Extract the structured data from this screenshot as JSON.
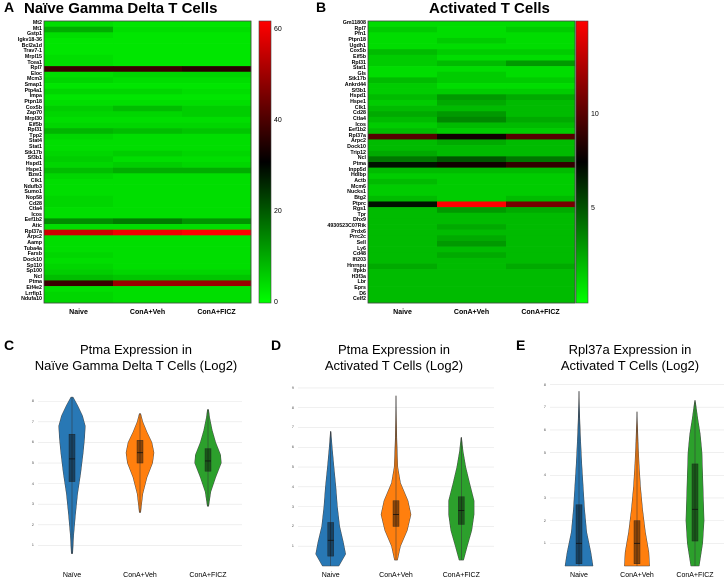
{
  "panels": {
    "A": "A",
    "B": "B",
    "C": "C",
    "D": "D",
    "E": "E"
  },
  "chart_data": [
    {
      "id": "A",
      "type": "heatmap",
      "title": "Naïve Gamma Delta T Cells",
      "columns": [
        "Naive",
        "ConA+Veh",
        "ConA+FICZ"
      ],
      "colorbar": {
        "min": 0,
        "max": 62,
        "ticks": [
          0,
          20,
          40,
          60
        ],
        "low_color": "#00ff00",
        "mid_color": "#000000",
        "high_color": "#ff0000"
      },
      "genes": [
        "Mt2",
        "Mt1",
        "Gstp1",
        "Igkv18-36",
        "Bcl2a1d",
        "Trav7-1",
        "Mrpl15",
        "Tcea1",
        "Rpl7",
        "Eloc",
        "Mcm3",
        "Smap1",
        "Ptp4a1",
        "Impa",
        "Ptpn18",
        "Cox5b",
        "Zap70",
        "Mrpl30",
        "Eif5b",
        "Rpl31",
        "Tpp2",
        "Stat4",
        "Stat1",
        "Stk17b",
        "Sf3b1",
        "Hspd1",
        "Hspe1",
        "Bzw1",
        "Clk1",
        "Ndufb3",
        "Sumo1",
        "Nop58",
        "Cd28",
        "Ctla4",
        "Icos",
        "Eef1b2",
        "Atic",
        "Rpl37a",
        "Arpc2",
        "Aamp",
        "Tuba4a",
        "Farsb",
        "Dock10",
        "Sp110",
        "Sp100",
        "Ncl",
        "Ptma",
        "Eif4e2",
        "Lrrfip1",
        "Ndufa10"
      ],
      "values": [
        [
          4,
          3,
          3
        ],
        [
          10,
          4,
          4
        ],
        [
          4,
          3,
          3
        ],
        [
          3,
          3,
          3
        ],
        [
          3,
          3,
          3
        ],
        [
          3,
          3,
          3
        ],
        [
          4,
          3,
          3
        ],
        [
          4,
          3,
          3
        ],
        [
          38,
          38,
          36
        ],
        [
          4,
          5,
          5
        ],
        [
          5,
          4,
          4
        ],
        [
          3,
          3,
          3
        ],
        [
          5,
          5,
          4
        ],
        [
          3,
          3,
          3
        ],
        [
          4,
          4,
          4
        ],
        [
          6,
          8,
          6
        ],
        [
          5,
          5,
          6
        ],
        [
          4,
          4,
          4
        ],
        [
          5,
          5,
          5
        ],
        [
          9,
          8,
          7
        ],
        [
          5,
          4,
          4
        ],
        [
          4,
          4,
          4
        ],
        [
          4,
          4,
          4
        ],
        [
          5,
          6,
          5
        ],
        [
          6,
          4,
          4
        ],
        [
          5,
          6,
          5
        ],
        [
          8,
          10,
          10
        ],
        [
          5,
          4,
          4
        ],
        [
          4,
          4,
          4
        ],
        [
          4,
          4,
          4
        ],
        [
          4,
          4,
          4
        ],
        [
          5,
          4,
          4
        ],
        [
          5,
          4,
          4
        ],
        [
          4,
          4,
          4
        ],
        [
          4,
          4,
          4
        ],
        [
          14,
          16,
          13
        ],
        [
          4,
          4,
          4
        ],
        [
          56,
          60,
          62
        ],
        [
          4,
          4,
          4
        ],
        [
          4,
          4,
          4
        ],
        [
          4,
          4,
          4
        ],
        [
          5,
          4,
          4
        ],
        [
          4,
          4,
          4
        ],
        [
          5,
          4,
          4
        ],
        [
          6,
          5,
          5
        ],
        [
          8,
          7,
          7
        ],
        [
          38,
          50,
          50
        ],
        [
          4,
          4,
          4
        ],
        [
          5,
          4,
          4
        ],
        [
          5,
          4,
          4
        ]
      ]
    },
    {
      "id": "B",
      "type": "heatmap",
      "title": "Activated T Cells",
      "columns": [
        "Naive",
        "ConA+Veh",
        "ConA+FICZ"
      ],
      "colorbar": {
        "min": 0,
        "max": 15,
        "ticks": [
          5,
          10
        ],
        "low_color": "#00ff00",
        "mid_color": "#000000",
        "high_color": "#ff0000"
      },
      "genes": [
        "Gm11808",
        "Rpl7",
        "Pfn1",
        "Ptpn18",
        "Ugdh1",
        "Cox5b",
        "Eif5b",
        "Rpl31",
        "Stat1",
        "Gls",
        "Stk17b",
        "Ankrd44",
        "Sf3b1",
        "Hspd1",
        "Hspe1",
        "Clk1",
        "Cd28",
        "Ctla4",
        "Icos",
        "Eef1b2",
        "Rpl37a",
        "Arpc2",
        "Dock10",
        "Trip12",
        "Ncl",
        "Ptma",
        "Inpp5d",
        "Hdlbp",
        "Actb",
        "Mcm6",
        "Nucks1",
        "Btg2",
        "Ptprc",
        "Rgs1",
        "Tpr",
        "Dhx9",
        "4930523C07Rik",
        "Prdx6",
        "Prrc2c",
        "Sell",
        "Ly6",
        "Cd48",
        "Ifi203",
        "Hnrnpu",
        "Ifpkb",
        "H3f3a",
        "Lbr",
        "Eprs",
        "D6",
        "Celf2"
      ],
      "values": [
        [
          1,
          1,
          1
        ],
        [
          1.5,
          1,
          1.5
        ],
        [
          1,
          1,
          1
        ],
        [
          1,
          1.5,
          1
        ],
        [
          1,
          1,
          1
        ],
        [
          2,
          1.5,
          1.5
        ],
        [
          1.5,
          1,
          1
        ],
        [
          1.5,
          2,
          3
        ],
        [
          1,
          1,
          1
        ],
        [
          1,
          1.5,
          1
        ],
        [
          2,
          1.5,
          1.5
        ],
        [
          1.5,
          1,
          1
        ],
        [
          1.5,
          1.5,
          1.5
        ],
        [
          2,
          3,
          2.5
        ],
        [
          1.5,
          2.5,
          2
        ],
        [
          2,
          2,
          2
        ],
        [
          2.5,
          3,
          2
        ],
        [
          2,
          3.5,
          2.5
        ],
        [
          1.5,
          2,
          2
        ],
        [
          2,
          1.5,
          1.5
        ],
        [
          10,
          8,
          10
        ],
        [
          2,
          2.5,
          2
        ],
        [
          2,
          2,
          2
        ],
        [
          2.5,
          2,
          2
        ],
        [
          4,
          5,
          4
        ],
        [
          7,
          8,
          9
        ],
        [
          2,
          2,
          2
        ],
        [
          1.5,
          1.5,
          1.5
        ],
        [
          2,
          1.5,
          1.5
        ],
        [
          1.5,
          1.5,
          1.5
        ],
        [
          1.5,
          1.5,
          1.5
        ],
        [
          2,
          1.5,
          2
        ],
        [
          7,
          15,
          11
        ],
        [
          2,
          3,
          2.5
        ],
        [
          2,
          2,
          2
        ],
        [
          2,
          2,
          2
        ],
        [
          2,
          2.5,
          2
        ],
        [
          2,
          2,
          2
        ],
        [
          2,
          2.5,
          2
        ],
        [
          2,
          3,
          2
        ],
        [
          2,
          2,
          2
        ],
        [
          2,
          2.5,
          2
        ],
        [
          2,
          2,
          2
        ],
        [
          2.5,
          2,
          2.5
        ],
        [
          2,
          2,
          2
        ],
        [
          2,
          2,
          2
        ],
        [
          2,
          2,
          2
        ],
        [
          2,
          2,
          2
        ],
        [
          2,
          2,
          2
        ],
        [
          2,
          2,
          2
        ]
      ]
    },
    {
      "id": "C",
      "type": "violin",
      "title_line1": "Ptma Expression in",
      "title_line2": "Naïve Gamma Delta T Cells (Log2)",
      "categories": [
        "Naïve",
        "ConA+Veh",
        "ConA+FICZ"
      ],
      "colors": [
        "#2878b5",
        "#ff7f0e",
        "#2ca02c"
      ],
      "yrange": [
        0,
        8.4
      ],
      "yticks": [
        1,
        2,
        3,
        4,
        5,
        6,
        7,
        8
      ],
      "series": [
        {
          "min": 0.6,
          "max": 8.2,
          "q1": 4.1,
          "median": 5.2,
          "q3": 6.4,
          "profile": [
            [
              0.6,
              0.05
            ],
            [
              1.5,
              0.12
            ],
            [
              2.5,
              0.25
            ],
            [
              3.5,
              0.4
            ],
            [
              4.5,
              0.62
            ],
            [
              5.5,
              0.8
            ],
            [
              6.2,
              0.9
            ],
            [
              6.8,
              0.95
            ],
            [
              7.3,
              0.75
            ],
            [
              7.8,
              0.4
            ],
            [
              8.2,
              0.08
            ]
          ]
        },
        {
          "min": 2.6,
          "max": 7.4,
          "q1": 5.0,
          "median": 5.5,
          "q3": 6.1,
          "profile": [
            [
              2.6,
              0.05
            ],
            [
              3.5,
              0.2
            ],
            [
              4.3,
              0.5
            ],
            [
              5.0,
              0.9
            ],
            [
              5.5,
              1.0
            ],
            [
              6.0,
              0.85
            ],
            [
              6.5,
              0.5
            ],
            [
              7.0,
              0.2
            ],
            [
              7.4,
              0.05
            ]
          ]
        },
        {
          "min": 2.9,
          "max": 7.6,
          "q1": 4.6,
          "median": 5.1,
          "q3": 5.7,
          "profile": [
            [
              2.9,
              0.05
            ],
            [
              3.6,
              0.2
            ],
            [
              4.3,
              0.55
            ],
            [
              5.0,
              0.95
            ],
            [
              5.4,
              0.9
            ],
            [
              6.0,
              0.55
            ],
            [
              6.6,
              0.3
            ],
            [
              7.2,
              0.12
            ],
            [
              7.6,
              0.04
            ]
          ]
        }
      ]
    },
    {
      "id": "D",
      "type": "violin",
      "title_line1": "Ptma Expression in",
      "title_line2": "Activated T Cells (Log2)",
      "categories": [
        "Naive",
        "ConA+Veh",
        "ConA+FICZ"
      ],
      "colors": [
        "#2878b5",
        "#ff7f0e",
        "#2ca02c"
      ],
      "yrange": [
        0,
        9.5
      ],
      "yticks": [
        1,
        2,
        3,
        4,
        5,
        6,
        7,
        8,
        9
      ],
      "series": [
        {
          "min": 0.0,
          "max": 6.8,
          "q1": 0.5,
          "median": 1.3,
          "q3": 2.2,
          "profile": [
            [
              0.0,
              0.55
            ],
            [
              0.6,
              1.0
            ],
            [
              1.2,
              0.85
            ],
            [
              2.0,
              0.6
            ],
            [
              3.0,
              0.45
            ],
            [
              4.0,
              0.35
            ],
            [
              5.0,
              0.22
            ],
            [
              6.0,
              0.1
            ],
            [
              6.8,
              0.02
            ]
          ]
        },
        {
          "min": 0.3,
          "max": 8.6,
          "q1": 2.0,
          "median": 2.6,
          "q3": 3.3,
          "profile": [
            [
              0.3,
              0.1
            ],
            [
              1.0,
              0.3
            ],
            [
              1.8,
              0.75
            ],
            [
              2.6,
              1.0
            ],
            [
              3.3,
              0.8
            ],
            [
              4.2,
              0.3
            ],
            [
              5.0,
              0.12
            ],
            [
              6.5,
              0.05
            ],
            [
              8.6,
              0.01
            ]
          ]
        },
        {
          "min": 0.3,
          "max": 6.5,
          "q1": 2.1,
          "median": 2.8,
          "q3": 3.5,
          "profile": [
            [
              0.3,
              0.15
            ],
            [
              1.0,
              0.4
            ],
            [
              1.8,
              0.7
            ],
            [
              2.6,
              0.85
            ],
            [
              3.3,
              0.85
            ],
            [
              4.2,
              0.55
            ],
            [
              5.0,
              0.3
            ],
            [
              5.8,
              0.12
            ],
            [
              6.5,
              0.02
            ]
          ]
        }
      ]
    },
    {
      "id": "E",
      "type": "violin",
      "title_line1": "Rpl37a Expression in",
      "title_line2": "Activated T Cells (Log2)",
      "categories": [
        "Naive",
        "ConA+Veh",
        "ConA+FICZ"
      ],
      "colors": [
        "#2878b5",
        "#ff7f0e",
        "#2ca02c"
      ],
      "yrange": [
        0,
        8.2
      ],
      "yticks": [
        1,
        2,
        3,
        4,
        5,
        6,
        7,
        8
      ],
      "series": [
        {
          "min": 0.0,
          "max": 7.7,
          "q1": 0.1,
          "median": 1.0,
          "q3": 2.7,
          "profile": [
            [
              0.0,
              1.0
            ],
            [
              0.6,
              0.85
            ],
            [
              1.5,
              0.55
            ],
            [
              2.5,
              0.4
            ],
            [
              3.5,
              0.3
            ],
            [
              4.5,
              0.2
            ],
            [
              5.5,
              0.12
            ],
            [
              6.5,
              0.06
            ],
            [
              7.7,
              0.01
            ]
          ]
        },
        {
          "min": 0.0,
          "max": 6.8,
          "q1": 0.1,
          "median": 1.0,
          "q3": 2.0,
          "profile": [
            [
              0.0,
              0.9
            ],
            [
              0.6,
              0.85
            ],
            [
              1.5,
              0.6
            ],
            [
              2.5,
              0.4
            ],
            [
              3.5,
              0.25
            ],
            [
              4.5,
              0.15
            ],
            [
              5.5,
              0.08
            ],
            [
              6.8,
              0.01
            ]
          ]
        },
        {
          "min": 0.0,
          "max": 7.3,
          "q1": 1.1,
          "median": 2.5,
          "q3": 4.5,
          "profile": [
            [
              0.0,
              0.3
            ],
            [
              1.0,
              0.55
            ],
            [
              2.0,
              0.65
            ],
            [
              3.0,
              0.6
            ],
            [
              4.0,
              0.55
            ],
            [
              5.0,
              0.5
            ],
            [
              5.8,
              0.38
            ],
            [
              6.5,
              0.2
            ],
            [
              7.3,
              0.02
            ]
          ]
        }
      ]
    }
  ]
}
